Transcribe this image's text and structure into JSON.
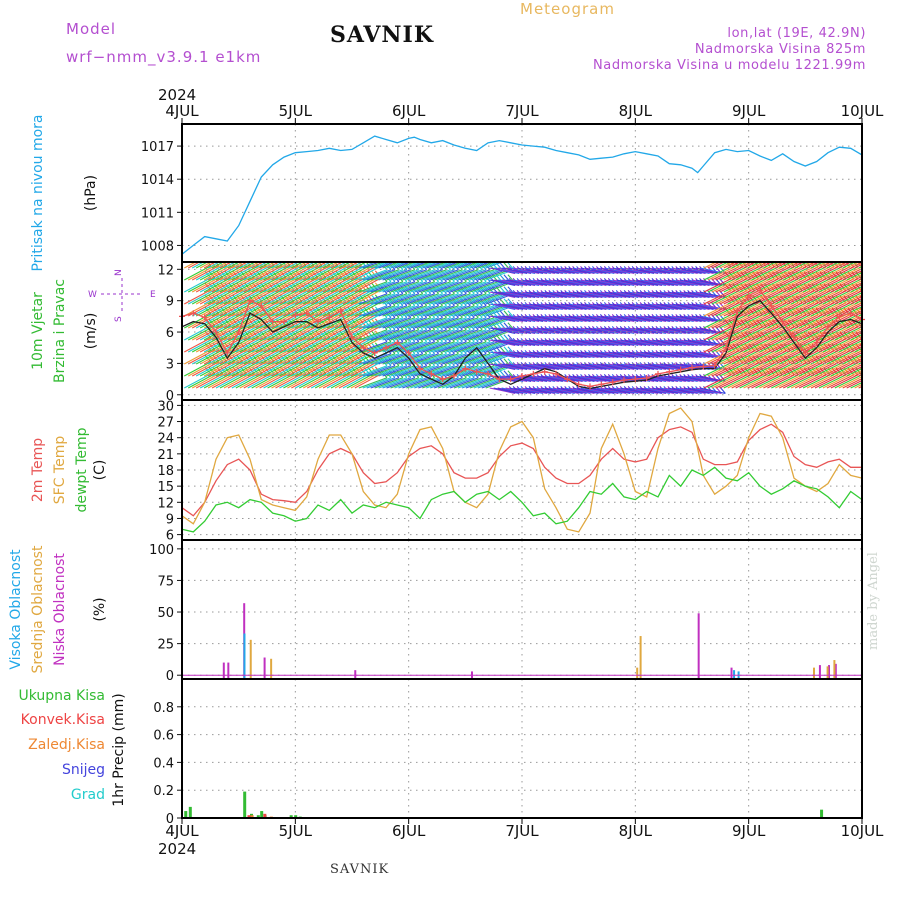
{
  "header": {
    "model_label": "Model",
    "model_name": "wrf−nmm_v3.9.1  e1km",
    "station": "SAVNIK",
    "product": "Meteogram",
    "lonlat": "lon,lat (19E, 42.9N)",
    "elevation": "Nadmorska Visina 825m",
    "model_elevation": "Nadmorska Visina u modelu 1221.99m",
    "year_top": "2024",
    "year_bottom": "2024"
  },
  "footer": {
    "station": "SAVNIK",
    "credit": "made by Angel"
  },
  "colors": {
    "pressure": "#22a8e8",
    "wind_speed": "#222222",
    "wind_gust": "#ee5555",
    "temp2m": "#e85555",
    "sfc_temp": "#e0a840",
    "dewpt": "#33cc33",
    "high_cloud": "#22a8e8",
    "mid_cloud": "#e0a840",
    "low_cloud": "#c030c0",
    "total_precip": "#33bb33",
    "convective": "#ee4444",
    "frozen": "#ee8833",
    "snow": "#4444dd",
    "hail": "#22cccc"
  },
  "chart_data": [
    {
      "type": "line",
      "title": "",
      "ylabel": [
        "Pritisak na nivou mora",
        "(hPa)"
      ],
      "ylim": [
        1006.5,
        1019
      ],
      "yticks": [
        1008,
        1011,
        1014,
        1017
      ],
      "x_ticks": [
        "4JUL",
        "5JUL",
        "6JUL",
        "7JUL",
        "8JUL",
        "9JUL",
        "10JUL"
      ],
      "grid": true,
      "series": [
        {
          "key": "pressure",
          "x": [
            0,
            0.1,
            0.2,
            0.3,
            0.4,
            0.5,
            0.6,
            0.7,
            0.8,
            0.9,
            1.0,
            1.1,
            1.2,
            1.3,
            1.4,
            1.5,
            1.6,
            1.7,
            1.8,
            1.9,
            2.0,
            2.05,
            2.1,
            2.2,
            2.3,
            2.4,
            2.5,
            2.6,
            2.7,
            2.8,
            2.9,
            3.0,
            3.1,
            3.2,
            3.3,
            3.4,
            3.5,
            3.6,
            3.7,
            3.8,
            3.9,
            4.0,
            4.1,
            4.2,
            4.3,
            4.4,
            4.5,
            4.55,
            4.6,
            4.7,
            4.8,
            4.9,
            5.0,
            5.1,
            5.2,
            5.3,
            5.4,
            5.5,
            5.6,
            5.7,
            5.8,
            5.9,
            6.0
          ],
          "values": [
            1007.2,
            1008.0,
            1008.8,
            1008.6,
            1008.4,
            1009.8,
            1012.0,
            1014.2,
            1015.3,
            1016.0,
            1016.4,
            1016.5,
            1016.6,
            1016.8,
            1016.6,
            1016.7,
            1017.3,
            1017.9,
            1017.6,
            1017.3,
            1017.7,
            1017.8,
            1017.6,
            1017.3,
            1017.5,
            1017.1,
            1016.8,
            1016.6,
            1017.3,
            1017.5,
            1017.3,
            1017.1,
            1017.0,
            1016.9,
            1016.6,
            1016.4,
            1016.2,
            1015.8,
            1015.9,
            1016.0,
            1016.3,
            1016.5,
            1016.3,
            1016.1,
            1015.4,
            1015.3,
            1015.0,
            1014.6,
            1015.2,
            1016.4,
            1016.7,
            1016.5,
            1016.6,
            1016.1,
            1015.7,
            1016.3,
            1015.6,
            1015.2,
            1015.6,
            1016.4,
            1016.9,
            1016.8,
            1016.2
          ]
        }
      ]
    },
    {
      "type": "line",
      "ylabel": [
        "10m Vjetar",
        "Brzina i Pravac",
        "(m/s)"
      ],
      "direction_key": [
        "N",
        "W",
        "E",
        "S"
      ],
      "ylim": [
        -0.5,
        12.7
      ],
      "yticks": [
        0,
        3,
        6,
        9,
        12
      ],
      "x_ticks": [
        "4JUL",
        "5JUL",
        "6JUL",
        "7JUL",
        "8JUL",
        "9JUL",
        "10JUL"
      ],
      "grid": true,
      "series": [
        {
          "key": "wind_speed",
          "x": [
            0,
            0.1,
            0.2,
            0.3,
            0.4,
            0.5,
            0.6,
            0.7,
            0.8,
            0.9,
            1.0,
            1.1,
            1.2,
            1.3,
            1.4,
            1.5,
            1.6,
            1.7,
            1.8,
            1.9,
            2.0,
            2.1,
            2.2,
            2.3,
            2.4,
            2.5,
            2.6,
            2.7,
            2.8,
            2.9,
            3.0,
            3.1,
            3.2,
            3.3,
            3.4,
            3.5,
            3.6,
            3.7,
            3.8,
            3.9,
            4.0,
            4.1,
            4.2,
            4.3,
            4.4,
            4.5,
            4.6,
            4.7,
            4.8,
            4.9,
            5.0,
            5.1,
            5.2,
            5.3,
            5.4,
            5.5,
            5.6,
            5.7,
            5.8,
            5.9,
            6.0
          ],
          "values": [
            6.5,
            7.0,
            6.8,
            5.5,
            3.5,
            5.0,
            7.8,
            7.2,
            6.0,
            6.5,
            7.0,
            7.0,
            6.4,
            6.8,
            7.2,
            5.0,
            4.0,
            3.5,
            4.0,
            4.5,
            3.5,
            2.0,
            1.5,
            1.0,
            1.8,
            3.5,
            4.5,
            3.0,
            1.5,
            1.0,
            1.5,
            2.0,
            2.5,
            2.2,
            1.5,
            0.8,
            0.6,
            0.8,
            1.0,
            1.2,
            1.3,
            1.4,
            1.8,
            2.0,
            2.2,
            2.4,
            2.5,
            2.5,
            4.0,
            7.5,
            8.5,
            9.0,
            7.8,
            6.5,
            5.0,
            3.5,
            4.5,
            6.0,
            7.0,
            7.2,
            6.8
          ]
        },
        {
          "key": "wind_gust",
          "x": [
            0,
            0.1,
            0.2,
            0.3,
            0.4,
            0.5,
            0.6,
            0.7,
            0.8,
            0.9,
            1.0,
            1.1,
            1.2,
            1.3,
            1.4,
            1.5,
            1.6,
            1.7,
            1.8,
            1.9,
            2.0,
            2.1,
            2.2,
            2.3,
            2.4,
            2.5,
            2.6,
            2.7,
            2.8,
            2.9,
            3.0,
            3.1,
            3.2,
            3.3,
            3.4,
            3.5,
            3.6,
            3.7,
            3.8,
            3.9,
            4.0,
            4.1,
            4.2,
            4.3,
            4.4,
            4.5,
            4.6,
            4.7,
            4.8,
            4.9,
            5.0,
            5.1,
            5.2,
            5.3,
            5.4,
            5.5,
            5.6,
            5.7,
            5.8,
            5.9,
            6.0
          ],
          "values": [
            7.5,
            7.8,
            7.4,
            6.0,
            4.0,
            6.0,
            9.0,
            8.5,
            7.0,
            7.0,
            7.6,
            7.8,
            7.0,
            7.4,
            8.0,
            5.5,
            4.5,
            4.0,
            4.5,
            5.0,
            4.0,
            2.5,
            2.0,
            1.5,
            1.8,
            2.5,
            2.2,
            2.0,
            1.5,
            1.5,
            1.8,
            2.0,
            2.2,
            2.0,
            1.5,
            1.0,
            0.8,
            1.0,
            1.2,
            1.4,
            1.5,
            1.6,
            2.0,
            2.2,
            2.4,
            2.6,
            2.7,
            2.8,
            4.5,
            8.0,
            9.5,
            10.0,
            8.5,
            7.0,
            5.5,
            4.0,
            5.0,
            6.5,
            7.5,
            7.8,
            7.2
          ]
        }
      ]
    },
    {
      "type": "line",
      "ylabel": [
        "2m Temp",
        "SFC Temp",
        "dewpt Temp",
        "(C)"
      ],
      "ylim": [
        5,
        31
      ],
      "yticks": [
        6,
        9,
        12,
        15,
        18,
        21,
        24,
        27,
        30
      ],
      "x_ticks": [
        "4JUL",
        "5JUL",
        "6JUL",
        "7JUL",
        "8JUL",
        "9JUL",
        "10JUL"
      ],
      "grid": true,
      "series": [
        {
          "key": "temp2m",
          "x": [
            0,
            0.1,
            0.2,
            0.3,
            0.4,
            0.5,
            0.6,
            0.7,
            0.8,
            0.9,
            1.0,
            1.1,
            1.2,
            1.3,
            1.4,
            1.5,
            1.6,
            1.7,
            1.8,
            1.9,
            2.0,
            2.1,
            2.2,
            2.3,
            2.4,
            2.5,
            2.6,
            2.7,
            2.8,
            2.9,
            3.0,
            3.1,
            3.2,
            3.3,
            3.4,
            3.5,
            3.6,
            3.7,
            3.8,
            3.9,
            4.0,
            4.1,
            4.2,
            4.3,
            4.4,
            4.5,
            4.6,
            4.7,
            4.8,
            4.9,
            5.0,
            5.1,
            5.2,
            5.3,
            5.4,
            5.5,
            5.6,
            5.7,
            5.8,
            5.9,
            6.0
          ],
          "values": [
            11.0,
            9.5,
            12.0,
            16.0,
            19.0,
            20.0,
            18.0,
            13.5,
            12.5,
            12.3,
            12.0,
            14.0,
            18.0,
            21.0,
            22.0,
            21.0,
            17.5,
            15.5,
            15.8,
            17.5,
            20.5,
            22.0,
            22.5,
            21.0,
            17.5,
            16.5,
            16.5,
            17.5,
            20.5,
            22.5,
            23.0,
            22.0,
            18.5,
            16.5,
            15.5,
            15.5,
            17.0,
            20.0,
            22.0,
            20.0,
            19.5,
            20.0,
            24.0,
            25.5,
            26.0,
            25.0,
            20.0,
            19.0,
            19.0,
            19.5,
            23.5,
            25.5,
            26.5,
            25.0,
            20.5,
            19.0,
            18.5,
            19.5,
            20.0,
            18.5,
            18.5
          ]
        },
        {
          "key": "sfc_temp",
          "x": [
            0,
            0.1,
            0.2,
            0.3,
            0.4,
            0.5,
            0.6,
            0.7,
            0.8,
            0.9,
            1.0,
            1.1,
            1.2,
            1.3,
            1.4,
            1.5,
            1.6,
            1.7,
            1.8,
            1.9,
            2.0,
            2.1,
            2.2,
            2.3,
            2.4,
            2.5,
            2.6,
            2.7,
            2.8,
            2.9,
            3.0,
            3.1,
            3.2,
            3.3,
            3.4,
            3.5,
            3.6,
            3.7,
            3.8,
            3.9,
            4.0,
            4.1,
            4.2,
            4.3,
            4.4,
            4.5,
            4.6,
            4.7,
            4.8,
            4.9,
            5.0,
            5.1,
            5.2,
            5.3,
            5.4,
            5.5,
            5.6,
            5.7,
            5.8,
            5.9,
            6.0
          ],
          "values": [
            9.5,
            8.0,
            12.0,
            20.0,
            24.0,
            24.5,
            20.0,
            12.5,
            11.5,
            11.0,
            10.5,
            13.0,
            20.0,
            24.5,
            24.5,
            21.0,
            14.0,
            11.5,
            11.0,
            13.5,
            21.0,
            25.5,
            26.0,
            22.0,
            14.0,
            12.0,
            11.0,
            13.5,
            21.5,
            26.0,
            27.0,
            24.0,
            14.5,
            11.0,
            7.0,
            6.5,
            10.0,
            22.0,
            26.5,
            21.0,
            14.0,
            13.0,
            22.0,
            28.5,
            29.5,
            27.0,
            17.0,
            13.5,
            15.0,
            17.0,
            24.0,
            28.5,
            28.0,
            24.0,
            16.5,
            15.0,
            14.0,
            15.5,
            19.0,
            17.0,
            16.5
          ]
        },
        {
          "key": "dewpt",
          "x": [
            0,
            0.1,
            0.2,
            0.3,
            0.4,
            0.5,
            0.6,
            0.7,
            0.8,
            0.9,
            1.0,
            1.1,
            1.2,
            1.3,
            1.4,
            1.5,
            1.6,
            1.7,
            1.8,
            1.9,
            2.0,
            2.1,
            2.2,
            2.3,
            2.4,
            2.5,
            2.6,
            2.7,
            2.8,
            2.9,
            3.0,
            3.1,
            3.2,
            3.3,
            3.4,
            3.5,
            3.6,
            3.7,
            3.8,
            3.9,
            4.0,
            4.1,
            4.2,
            4.3,
            4.4,
            4.5,
            4.6,
            4.7,
            4.8,
            4.9,
            5.0,
            5.1,
            5.2,
            5.3,
            5.4,
            5.5,
            5.6,
            5.7,
            5.8,
            5.9,
            6.0
          ],
          "values": [
            7.0,
            6.5,
            8.5,
            11.5,
            12.0,
            11.0,
            12.5,
            12.0,
            10.0,
            9.5,
            8.5,
            9.0,
            11.5,
            10.5,
            12.5,
            10.0,
            11.5,
            11.0,
            12.0,
            11.5,
            11.0,
            9.0,
            12.5,
            13.5,
            14.0,
            12.0,
            13.5,
            14.0,
            12.5,
            14.0,
            12.0,
            9.5,
            10.0,
            8.0,
            8.5,
            11.0,
            14.0,
            13.5,
            15.5,
            13.0,
            12.5,
            14.0,
            13.0,
            17.0,
            15.0,
            18.0,
            17.0,
            18.5,
            16.5,
            16.0,
            17.5,
            15.0,
            13.5,
            14.5,
            16.0,
            15.0,
            14.5,
            13.0,
            11.0,
            14.0,
            12.5
          ]
        }
      ]
    },
    {
      "type": "bar",
      "ylabel": [
        "Visoka Oblacnost",
        "Srednja Oblacnost",
        "Niska Oblacnost",
        "(%)"
      ],
      "ylim": [
        -3,
        107
      ],
      "yticks": [
        0,
        25,
        50,
        75,
        100
      ],
      "x_ticks": [
        "4JUL",
        "5JUL",
        "6JUL",
        "7JUL",
        "8JUL",
        "9JUL",
        "10JUL"
      ],
      "grid": true,
      "series": [
        {
          "key": "low_cloud",
          "x": [
            0.36,
            0.4,
            0.54,
            0.72,
            1.52,
            2.55,
            4.55,
            4.84,
            5.62,
            5.7,
            5.76
          ],
          "values": [
            10,
            10,
            57,
            14,
            4,
            3,
            49,
            6,
            8,
            8,
            9
          ]
        },
        {
          "key": "mid_cloud",
          "x": [
            0.58,
            0.76,
            3.99,
            4.02,
            5.55,
            5.67,
            5.73
          ],
          "values": [
            28,
            13,
            6,
            31,
            6,
            7,
            12
          ]
        },
        {
          "key": "high_cloud",
          "x": [
            0.56,
            4.88,
            4.92
          ],
          "values": [
            33,
            4,
            3
          ]
        }
      ]
    },
    {
      "type": "bar",
      "ylabel": [
        "Ukupna Kisa",
        "Konvek.Kisa",
        "Zaledj.Kisa",
        "Snijeg",
        "Grad",
        "1hr Precip (mm)"
      ],
      "ylim": [
        0,
        1.0
      ],
      "yticks": [
        0,
        0.2,
        0.4,
        0.6,
        0.8
      ],
      "x_ticks": [
        "4JUL",
        "5JUL",
        "6JUL",
        "7JUL",
        "8JUL",
        "9JUL",
        "10JUL"
      ],
      "grid": true,
      "series": [
        {
          "key": "total_precip",
          "x": [
            0.02,
            0.06,
            0.54,
            0.6,
            0.66,
            0.69,
            0.72,
            0.95,
            0.99,
            1.03,
            5.63
          ],
          "values": [
            0.05,
            0.08,
            0.19,
            0.03,
            0.02,
            0.05,
            0.02,
            0.02,
            0.02,
            0.01,
            0.06
          ]
        },
        {
          "key": "convective",
          "x": [
            0.56,
            0.7
          ],
          "values": [
            0.02,
            0.03
          ]
        },
        {
          "key": "frozen",
          "x": [
            0.57,
            0.74
          ],
          "values": [
            0.02,
            0.01
          ]
        }
      ]
    }
  ]
}
